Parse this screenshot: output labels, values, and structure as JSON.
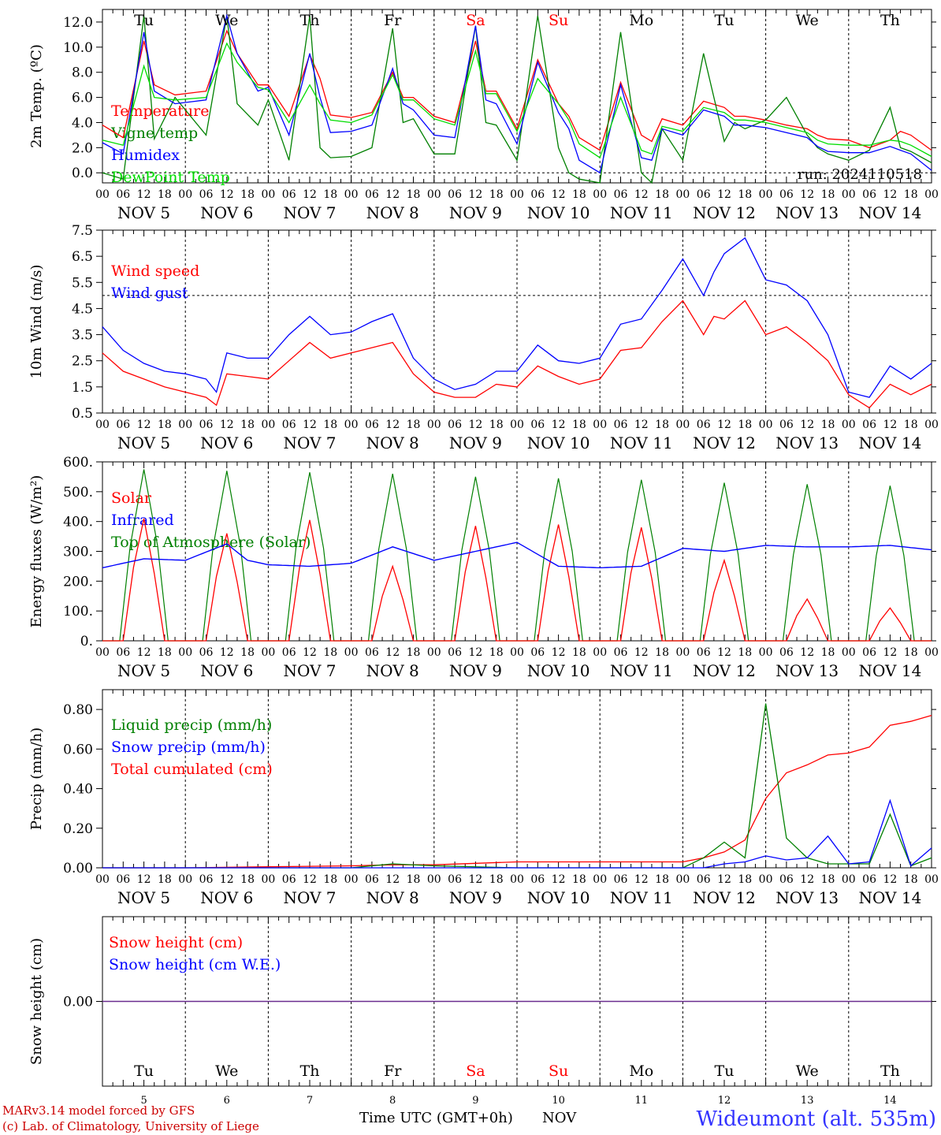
{
  "chart_data": [
    {
      "type": "line",
      "ylabel": "2m Temp. (ºC)",
      "ylim": [
        -0.8,
        13.0
      ],
      "yticks": [
        "12.0",
        "10.0",
        "8.0",
        "6.0",
        "4.0",
        "2.0",
        "0.0"
      ],
      "ytick_values": [
        12,
        10,
        8,
        6,
        4,
        2,
        0
      ],
      "run_label": "run: 2024110518",
      "reference_line": 0,
      "legend": [
        {
          "name": "Temperature",
          "color": "#ff0000"
        },
        {
          "name": "Vigne temp",
          "color": "#008000"
        },
        {
          "name": "Humidex",
          "color": "#0000ff"
        },
        {
          "name": "DewPoint Temp",
          "color": "#00dd00"
        }
      ],
      "x_hours": [
        0,
        6,
        12,
        15,
        21,
        30,
        36,
        39,
        45,
        48,
        54,
        60,
        63,
        66,
        72,
        78,
        84,
        87,
        90,
        96,
        102,
        108,
        111,
        114,
        120,
        126,
        132,
        135,
        138,
        144,
        150,
        156,
        159,
        162,
        168,
        174,
        180,
        183,
        186,
        192,
        198,
        204,
        207,
        210,
        216,
        222,
        228,
        231,
        234,
        240
      ],
      "series": [
        {
          "name": "Temperature",
          "color": "#ff0000",
          "values": [
            3.8,
            2.8,
            10.5,
            7,
            6.2,
            6.5,
            11.3,
            9.5,
            7,
            7,
            4.5,
            9.4,
            7.5,
            4.6,
            4.4,
            4.8,
            8,
            6,
            6,
            4.5,
            4,
            10.5,
            6.5,
            6.5,
            3.5,
            9,
            5.5,
            4.5,
            2.8,
            1.8,
            7.2,
            3,
            2.5,
            4.3,
            3.8,
            5.7,
            5.2,
            4.5,
            4.5,
            4.2,
            3.8,
            3.5,
            3.0,
            2.7,
            2.6,
            2.0,
            2.6,
            3.3,
            3.0,
            1.8
          ]
        },
        {
          "name": "Vigne temp",
          "color": "#008000",
          "values": [
            0,
            -0.5,
            12.5,
            2.7,
            6,
            3,
            12.5,
            5.5,
            3.8,
            5.8,
            1,
            12.5,
            2,
            1.2,
            1.3,
            2,
            11.5,
            4,
            4.3,
            1.5,
            1.5,
            11.7,
            4,
            3.8,
            1,
            12.5,
            2,
            0,
            -0.5,
            -1,
            11.2,
            0,
            -1,
            3.5,
            1,
            9.5,
            2.5,
            4,
            3.5,
            4.2,
            6.0,
            3,
            2.0,
            1.5,
            1.0,
            1.8,
            5.2,
            2.0,
            1.7,
            0.8
          ]
        },
        {
          "name": "Humidex",
          "color": "#0000ff",
          "values": [
            2.4,
            1.5,
            11.2,
            6.5,
            5.5,
            5.8,
            12.5,
            9.5,
            6.5,
            6.8,
            3,
            9.5,
            6,
            3.2,
            3.3,
            3.8,
            8.3,
            5.5,
            5,
            3,
            2.8,
            11.7,
            5.8,
            5.5,
            2.3,
            8.8,
            4.8,
            3.5,
            1,
            0,
            7,
            1.2,
            1.0,
            3.5,
            3,
            5.0,
            4.5,
            3.8,
            3.8,
            3.6,
            3.2,
            2.8,
            2.1,
            1.7,
            1.6,
            1.6,
            2.1,
            1.8,
            1.5,
            0.2
          ]
        },
        {
          "name": "DewPoint Temp",
          "color": "#00dd00",
          "values": [
            2.6,
            2.2,
            8.5,
            6,
            5.8,
            6,
            10.3,
            8.8,
            6.8,
            6.6,
            4,
            7,
            5.5,
            4.2,
            4,
            4.6,
            7.8,
            5.8,
            5.8,
            4.3,
            3.8,
            9.7,
            6.3,
            6.3,
            3.3,
            7.5,
            5.5,
            4.2,
            2.3,
            1.2,
            6,
            1.8,
            1.5,
            3.7,
            3.3,
            5.2,
            4.8,
            4.2,
            4.2,
            4.0,
            3.6,
            3.2,
            2.6,
            2.3,
            2.2,
            2.2,
            2.6,
            2.5,
            2.2,
            1.3
          ]
        }
      ],
      "x_ticks": [
        "00",
        "06",
        "12",
        "18"
      ],
      "day_labels": [
        "NOV  5",
        "NOV  6",
        "NOV  7",
        "NOV  8",
        "NOV  9",
        "NOV 10",
        "NOV 11",
        "NOV 12",
        "NOV 13",
        "NOV 14"
      ]
    },
    {
      "type": "line",
      "ylabel": "10m Wind (m/s)",
      "ylim": [
        0.5,
        7.5
      ],
      "yticks": [
        "7.5",
        "6.5",
        "5.5",
        "4.5",
        "3.5",
        "2.5",
        "1.5",
        "0.5"
      ],
      "ytick_values": [
        7.5,
        6.5,
        5.5,
        4.5,
        3.5,
        2.5,
        1.5,
        0.5
      ],
      "reference_line": 5.0,
      "legend": [
        {
          "name": "Wind speed",
          "color": "#ff0000"
        },
        {
          "name": "Wind gust",
          "color": "#0000ff"
        }
      ],
      "x_hours": [
        0,
        6,
        12,
        18,
        24,
        30,
        33,
        36,
        42,
        48,
        54,
        60,
        66,
        72,
        78,
        84,
        90,
        96,
        102,
        108,
        114,
        120,
        126,
        132,
        138,
        144,
        150,
        156,
        162,
        168,
        174,
        177,
        180,
        186,
        192,
        198,
        204,
        210,
        216,
        222,
        228,
        234,
        240
      ],
      "series": [
        {
          "name": "Wind speed",
          "color": "#ff0000",
          "values": [
            2.8,
            2.1,
            1.8,
            1.5,
            1.3,
            1.1,
            0.8,
            2.0,
            1.9,
            1.8,
            2.5,
            3.2,
            2.6,
            2.8,
            3.0,
            3.2,
            2.0,
            1.3,
            1.1,
            1.1,
            1.6,
            1.5,
            2.3,
            1.9,
            1.6,
            1.8,
            2.9,
            3.0,
            4.0,
            4.8,
            3.5,
            4.2,
            4.1,
            4.8,
            3.5,
            3.8,
            3.2,
            2.5,
            1.2,
            0.7,
            1.6,
            1.2,
            1.6
          ]
        },
        {
          "name": "Wind gust",
          "color": "#0000ff",
          "values": [
            3.8,
            2.9,
            2.4,
            2.1,
            2.0,
            1.8,
            1.3,
            2.8,
            2.6,
            2.6,
            3.5,
            4.2,
            3.5,
            3.6,
            4.0,
            4.3,
            2.6,
            1.8,
            1.4,
            1.6,
            2.1,
            2.1,
            3.1,
            2.5,
            2.4,
            2.6,
            3.9,
            4.1,
            5.2,
            6.4,
            5.0,
            5.9,
            6.6,
            7.2,
            5.6,
            5.4,
            4.8,
            3.5,
            1.3,
            1.1,
            2.3,
            1.8,
            2.4
          ]
        }
      ],
      "x_ticks": [
        "00",
        "06",
        "12",
        "18"
      ],
      "day_labels": [
        "NOV  5",
        "NOV  6",
        "NOV  7",
        "NOV  8",
        "NOV  9",
        "NOV 10",
        "NOV 11",
        "NOV 12",
        "NOV 13",
        "NOV 14"
      ]
    },
    {
      "type": "line",
      "ylabel": "Energy fluxes (W/m²)",
      "ylim": [
        0,
        600
      ],
      "yticks": [
        "600.",
        "500.",
        "400.",
        "300.",
        "200.",
        "100.",
        "0."
      ],
      "ytick_values": [
        600,
        500,
        400,
        300,
        200,
        100,
        0
      ],
      "legend": [
        {
          "name": "Solar",
          "color": "#ff0000"
        },
        {
          "name": "Infrared",
          "color": "#0000ff"
        },
        {
          "name": "Top of Atmosphere (Solar)",
          "color": "#008000"
        }
      ],
      "toa_peaks": [
        575,
        570,
        565,
        560,
        550,
        545,
        540,
        530,
        525,
        520
      ],
      "solar_peaks": [
        410,
        360,
        405,
        250,
        385,
        390,
        380,
        270,
        140,
        110
      ],
      "infrared": {
        "x_hours": [
          0,
          12,
          24,
          36,
          42,
          48,
          60,
          72,
          84,
          96,
          108,
          120,
          132,
          144,
          156,
          168,
          180,
          192,
          204,
          216,
          228,
          240
        ],
        "values": [
          245,
          275,
          270,
          325,
          270,
          255,
          250,
          260,
          315,
          270,
          300,
          330,
          250,
          245,
          250,
          310,
          300,
          320,
          315,
          315,
          320,
          305
        ]
      },
      "x_ticks": [
        "00",
        "06",
        "12",
        "18"
      ],
      "day_labels": [
        "NOV  5",
        "NOV  6",
        "NOV  7",
        "NOV  8",
        "NOV  9",
        "NOV 10",
        "NOV 11",
        "NOV 12",
        "NOV 13",
        "NOV 14"
      ]
    },
    {
      "type": "line",
      "ylabel": "Precip (mm/h)",
      "ylim": [
        0,
        0.9
      ],
      "yticks": [
        "0.80",
        "0.60",
        "0.40",
        "0.20",
        "0.00"
      ],
      "ytick_values": [
        0.8,
        0.6,
        0.4,
        0.2,
        0.0
      ],
      "legend": [
        {
          "name": "Liquid precip (mm/h)",
          "color": "#008000"
        },
        {
          "name": "Snow precip (mm/h)",
          "color": "#0000ff"
        },
        {
          "name": "Total cumulated (cm)",
          "color": "#ff0000"
        }
      ],
      "x_hours": [
        0,
        24,
        48,
        72,
        84,
        96,
        120,
        144,
        168,
        174,
        180,
        186,
        192,
        198,
        204,
        210,
        216,
        222,
        228,
        234,
        240
      ],
      "series": [
        {
          "name": "Total cumulated (cm)",
          "color": "#ff0000",
          "values": [
            0,
            0,
            0.005,
            0.01,
            0.015,
            0.015,
            0.03,
            0.03,
            0.03,
            0.05,
            0.08,
            0.14,
            0.35,
            0.48,
            0.52,
            0.57,
            0.58,
            0.61,
            0.72,
            0.74,
            0.77
          ]
        },
        {
          "name": "Liquid precip (mm/h)",
          "color": "#008000",
          "values": [
            0,
            0,
            0,
            0,
            0.02,
            0.01,
            0,
            0,
            0,
            0.05,
            0.13,
            0.05,
            0.83,
            0.15,
            0.05,
            0.02,
            0.02,
            0.02,
            0.27,
            0.01,
            0.05
          ]
        },
        {
          "name": "Snow precip (mm/h)",
          "color": "#0000ff",
          "values": [
            0,
            0,
            0,
            0,
            0,
            0,
            0,
            0,
            0,
            0,
            0.02,
            0.03,
            0.06,
            0.04,
            0.05,
            0.16,
            0.02,
            0.03,
            0.34,
            0.01,
            0.1
          ]
        }
      ],
      "x_ticks": [
        "00",
        "06",
        "12",
        "18"
      ],
      "day_labels": [
        "NOV  5",
        "NOV  6",
        "NOV  7",
        "NOV  8",
        "NOV  9",
        "NOV 10",
        "NOV 11",
        "NOV 12",
        "NOV 13",
        "NOV 14"
      ]
    },
    {
      "type": "line",
      "ylabel": "Snow height (cm)",
      "yticks": [
        "0.00"
      ],
      "ytick_values": [
        0
      ],
      "legend": [
        {
          "name": "Snow height (cm)",
          "color": "#ff0000"
        },
        {
          "name": "Snow height (cm W.E.)",
          "color": "#0000ff"
        }
      ],
      "series": [
        {
          "name": "Snow height (cm)",
          "color": "#ff0000",
          "values": [
            0,
            0
          ]
        },
        {
          "name": "Snow height (cm W.E.)",
          "color": "#0000ff",
          "values": [
            0,
            0
          ]
        }
      ],
      "bottom_day_numbers": [
        "5",
        "6",
        "7",
        "8",
        "9",
        "10",
        "11",
        "12",
        "13",
        "14"
      ]
    }
  ],
  "weekdays": [
    {
      "label": "Tu",
      "color": "#000000"
    },
    {
      "label": "We",
      "color": "#000000"
    },
    {
      "label": "Th",
      "color": "#000000"
    },
    {
      "label": "Fr",
      "color": "#000000"
    },
    {
      "label": "Sa",
      "color": "#ff0000"
    },
    {
      "label": "Su",
      "color": "#ff0000"
    },
    {
      "label": "Mo",
      "color": "#000000"
    },
    {
      "label": "Tu",
      "color": "#000000"
    },
    {
      "label": "We",
      "color": "#000000"
    },
    {
      "label": "Th",
      "color": "#000000"
    }
  ],
  "footer": {
    "credit_line1": "MARv3.14 model forced by GFS",
    "credit_line2": "(c) Lab. of Climatology, University of Liege",
    "xlabel": "Time UTC (GMT+0h)",
    "month": "NOV",
    "station": "Wideumont (alt. 535m)"
  },
  "colors": {
    "red": "#ff0000",
    "green": "#008000",
    "blue": "#0000ff",
    "light_green": "#00dd00",
    "credit": "#cc0000",
    "station": "#3333ff"
  }
}
